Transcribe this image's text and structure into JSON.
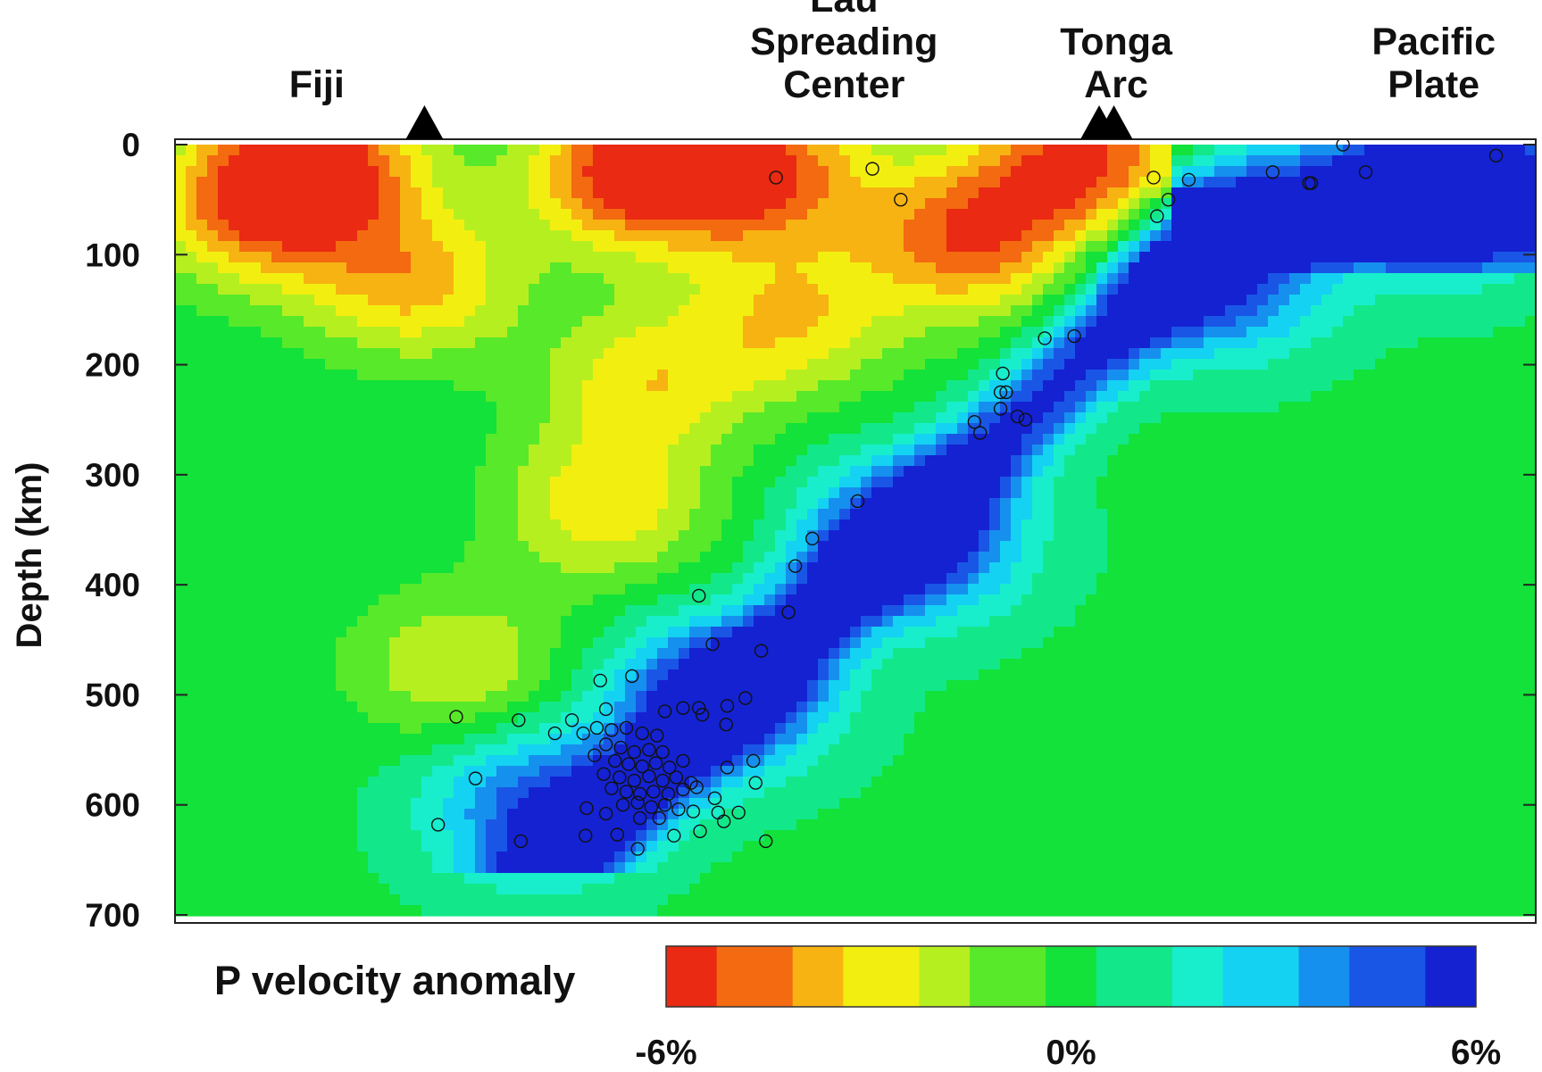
{
  "chart_data": {
    "type": "heatmap",
    "title": "",
    "ylabel": "Depth (km)",
    "ylim": [
      0,
      700
    ],
    "yticks": [
      "0",
      "100",
      "200",
      "300",
      "400",
      "500",
      "600",
      "700"
    ],
    "surface_labels": [
      {
        "text": "Fiji",
        "x_km": 125
      },
      {
        "text": "Lau\nSpreading\nCenter",
        "x_km": 590
      },
      {
        "text": "Tonga\nArc",
        "x_km": 830
      },
      {
        "text": "Pacific\nPlate",
        "x_km": 1110
      }
    ],
    "volcanoes_x_km": [
      220,
      815,
      828
    ],
    "colorbar": {
      "label": "P velocity anomaly",
      "min": -6,
      "max": 6,
      "ticks": [
        "-6%",
        "0%",
        "6%"
      ],
      "colors": [
        "#ea2a12",
        "#f36a10",
        "#f7b312",
        "#f2ef10",
        "#b6ef20",
        "#58e92a",
        "#12e23a",
        "#12e88a",
        "#18eecc",
        "#14d2f2",
        "#1690ee",
        "#1a56e6",
        "#1422d2"
      ]
    },
    "x_range_km": [
      0,
      1200
    ],
    "anomaly_features": [
      {
        "kind": "slow",
        "x_km": 125,
        "depth": 15,
        "value": -5.5
      },
      {
        "kind": "slow",
        "x_km": 70,
        "depth": 60,
        "value": -4.2
      },
      {
        "kind": "slow",
        "x_km": 210,
        "depth": 125,
        "value": -3.8
      },
      {
        "kind": "slow",
        "x_km": 405,
        "depth": 25,
        "value": -6
      },
      {
        "kind": "slow",
        "x_km": 520,
        "depth": 25,
        "value": -5
      },
      {
        "kind": "slow",
        "x_km": 700,
        "depth": 85,
        "value": -5
      },
      {
        "kind": "slow",
        "x_km": 545,
        "depth": 160,
        "value": -3.2
      },
      {
        "kind": "slow",
        "x_km": 415,
        "depth": 215,
        "value": -3
      },
      {
        "kind": "slow",
        "x_km": 380,
        "depth": 330,
        "value": -3.2
      },
      {
        "kind": "slow",
        "x_km": 805,
        "depth": 15,
        "value": -5.5
      },
      {
        "kind": "slow",
        "x_km": 250,
        "depth": 475,
        "value": -2.6
      },
      {
        "kind": "fast",
        "x_km": 1120,
        "depth": 45,
        "value": 6
      },
      {
        "kind": "fast",
        "x_km": 920,
        "depth": 120,
        "value": 5
      },
      {
        "kind": "fast",
        "x_km": 650,
        "depth": 360,
        "value": 5.5
      },
      {
        "kind": "fast",
        "x_km": 480,
        "depth": 500,
        "value": 5.5
      },
      {
        "kind": "fast",
        "x_km": 320,
        "depth": 600,
        "value": 4.5
      }
    ],
    "hypocenters": [
      {
        "x_km": 530,
        "depth": 30
      },
      {
        "x_km": 615,
        "depth": 22
      },
      {
        "x_km": 640,
        "depth": 50
      },
      {
        "x_km": 1165,
        "depth": 10
      },
      {
        "x_km": 1030,
        "depth": 0
      },
      {
        "x_km": 1050,
        "depth": 25
      },
      {
        "x_km": 1002,
        "depth": 35
      },
      {
        "x_km": 968,
        "depth": 25
      },
      {
        "x_km": 1000,
        "depth": 35
      },
      {
        "x_km": 863,
        "depth": 30
      },
      {
        "x_km": 876,
        "depth": 50
      },
      {
        "x_km": 894,
        "depth": 32
      },
      {
        "x_km": 866,
        "depth": 65
      },
      {
        "x_km": 767,
        "depth": 176
      },
      {
        "x_km": 793,
        "depth": 174
      },
      {
        "x_km": 730,
        "depth": 208
      },
      {
        "x_km": 728,
        "depth": 225
      },
      {
        "x_km": 733,
        "depth": 225
      },
      {
        "x_km": 728,
        "depth": 240
      },
      {
        "x_km": 743,
        "depth": 247
      },
      {
        "x_km": 750,
        "depth": 250
      },
      {
        "x_km": 705,
        "depth": 252
      },
      {
        "x_km": 710,
        "depth": 262
      },
      {
        "x_km": 602,
        "depth": 324
      },
      {
        "x_km": 562,
        "depth": 358
      },
      {
        "x_km": 547,
        "depth": 383
      },
      {
        "x_km": 541,
        "depth": 425
      },
      {
        "x_km": 462,
        "depth": 410
      },
      {
        "x_km": 474,
        "depth": 454
      },
      {
        "x_km": 517,
        "depth": 460
      },
      {
        "x_km": 403,
        "depth": 483
      },
      {
        "x_km": 375,
        "depth": 487
      },
      {
        "x_km": 503,
        "depth": 503
      },
      {
        "x_km": 487,
        "depth": 510
      },
      {
        "x_km": 462,
        "depth": 512
      },
      {
        "x_km": 448,
        "depth": 512
      },
      {
        "x_km": 432,
        "depth": 515
      },
      {
        "x_km": 465,
        "depth": 518
      },
      {
        "x_km": 486,
        "depth": 527
      },
      {
        "x_km": 350,
        "depth": 523
      },
      {
        "x_km": 380,
        "depth": 513
      },
      {
        "x_km": 248,
        "depth": 520
      },
      {
        "x_km": 303,
        "depth": 523
      },
      {
        "x_km": 335,
        "depth": 535
      },
      {
        "x_km": 360,
        "depth": 535
      },
      {
        "x_km": 372,
        "depth": 530
      },
      {
        "x_km": 385,
        "depth": 532
      },
      {
        "x_km": 398,
        "depth": 530
      },
      {
        "x_km": 412,
        "depth": 535
      },
      {
        "x_km": 425,
        "depth": 537
      },
      {
        "x_km": 380,
        "depth": 545
      },
      {
        "x_km": 393,
        "depth": 548
      },
      {
        "x_km": 405,
        "depth": 552
      },
      {
        "x_km": 418,
        "depth": 550
      },
      {
        "x_km": 430,
        "depth": 552
      },
      {
        "x_km": 370,
        "depth": 555
      },
      {
        "x_km": 388,
        "depth": 560
      },
      {
        "x_km": 400,
        "depth": 563
      },
      {
        "x_km": 412,
        "depth": 565
      },
      {
        "x_km": 424,
        "depth": 562
      },
      {
        "x_km": 436,
        "depth": 566
      },
      {
        "x_km": 448,
        "depth": 560
      },
      {
        "x_km": 510,
        "depth": 560
      },
      {
        "x_km": 487,
        "depth": 566
      },
      {
        "x_km": 378,
        "depth": 572
      },
      {
        "x_km": 392,
        "depth": 575
      },
      {
        "x_km": 405,
        "depth": 578
      },
      {
        "x_km": 418,
        "depth": 574
      },
      {
        "x_km": 430,
        "depth": 578
      },
      {
        "x_km": 442,
        "depth": 575
      },
      {
        "x_km": 455,
        "depth": 580
      },
      {
        "x_km": 385,
        "depth": 585
      },
      {
        "x_km": 398,
        "depth": 588
      },
      {
        "x_km": 410,
        "depth": 590
      },
      {
        "x_km": 422,
        "depth": 588
      },
      {
        "x_km": 435,
        "depth": 590
      },
      {
        "x_km": 448,
        "depth": 586
      },
      {
        "x_km": 460,
        "depth": 584
      },
      {
        "x_km": 512,
        "depth": 580
      },
      {
        "x_km": 265,
        "depth": 576
      },
      {
        "x_km": 395,
        "depth": 600
      },
      {
        "x_km": 408,
        "depth": 598
      },
      {
        "x_km": 420,
        "depth": 602
      },
      {
        "x_km": 432,
        "depth": 600
      },
      {
        "x_km": 444,
        "depth": 604
      },
      {
        "x_km": 457,
        "depth": 606
      },
      {
        "x_km": 476,
        "depth": 594
      },
      {
        "x_km": 479,
        "depth": 607
      },
      {
        "x_km": 484,
        "depth": 615
      },
      {
        "x_km": 497,
        "depth": 607
      },
      {
        "x_km": 363,
        "depth": 603
      },
      {
        "x_km": 380,
        "depth": 608
      },
      {
        "x_km": 232,
        "depth": 618
      },
      {
        "x_km": 410,
        "depth": 612
      },
      {
        "x_km": 427,
        "depth": 612
      },
      {
        "x_km": 390,
        "depth": 627
      },
      {
        "x_km": 440,
        "depth": 628
      },
      {
        "x_km": 463,
        "depth": 624
      },
      {
        "x_km": 362,
        "depth": 628
      },
      {
        "x_km": 305,
        "depth": 633
      },
      {
        "x_km": 521,
        "depth": 633
      },
      {
        "x_km": 408,
        "depth": 640
      }
    ]
  }
}
